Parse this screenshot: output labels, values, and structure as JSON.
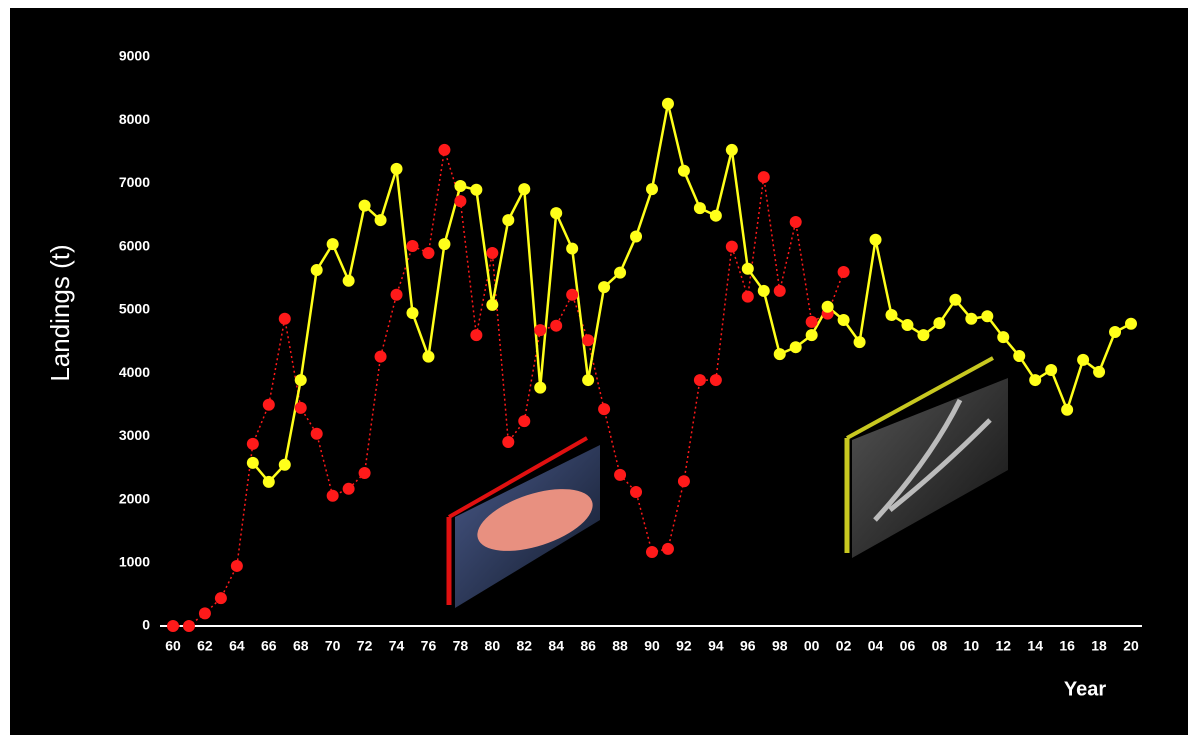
{
  "chart_data": {
    "type": "line",
    "y_label": "Landings (t)",
    "x_label": "Year",
    "categories": [
      "60",
      null,
      "62",
      null,
      "64",
      null,
      "66",
      null,
      "68",
      null,
      "70",
      null,
      "72",
      null,
      "74",
      null,
      "76",
      null,
      "78",
      null,
      "80",
      null,
      "82",
      null,
      "84",
      null,
      "86",
      null,
      "88",
      null,
      "90",
      null,
      "92",
      null,
      "94",
      null,
      "96",
      null,
      "98",
      null,
      "00",
      null,
      "02",
      null,
      "04",
      null,
      "06",
      null,
      "08",
      null,
      "10",
      null,
      "12",
      null,
      "14",
      null,
      "16",
      null,
      "18",
      null,
      "20"
    ],
    "series": [
      {
        "color": "#ff1a1a",
        "dash": "dotted",
        "values": [
          0,
          0,
          200,
          440,
          950,
          2880,
          3500,
          4860,
          3450,
          3040,
          2060,
          2170,
          2420,
          4260,
          5240,
          6010,
          5900,
          7530,
          6720,
          4600,
          5900,
          2910,
          3240,
          4680,
          4750,
          5240,
          4520,
          3430,
          2390,
          2120,
          1170,
          1220,
          2290,
          3890,
          3890,
          6000,
          5210,
          7100,
          5300,
          6390,
          4810,
          4940,
          5600,
          null,
          null,
          null,
          null,
          null,
          null,
          null,
          null,
          null,
          null,
          null,
          null,
          null,
          null,
          null,
          null,
          null,
          null
        ]
      },
      {
        "color": "#ffff1a",
        "dash": "solid",
        "values": [
          null,
          null,
          null,
          null,
          null,
          2580,
          2280,
          2550,
          3890,
          5630,
          6040,
          5460,
          6650,
          6420,
          7230,
          4950,
          4260,
          6040,
          6960,
          6900,
          5080,
          6420,
          6910,
          3770,
          6530,
          5970,
          3890,
          5360,
          5590,
          6160,
          6910,
          8260,
          7200,
          6610,
          6490,
          7530,
          5650,
          5300,
          4300,
          4410,
          4600,
          5050,
          4840,
          4490,
          6110,
          4920,
          4760,
          4600,
          4790,
          5160,
          4860,
          4900,
          4570,
          4270,
          3890,
          4050,
          3420,
          4210,
          4020,
          4650,
          4780
        ]
      }
    ],
    "ylim": [
      0,
      9000
    ],
    "yticks": [
      0,
      1000,
      2000,
      3000,
      4000,
      5000,
      6000,
      7000,
      8000,
      9000
    ],
    "grid": false
  }
}
